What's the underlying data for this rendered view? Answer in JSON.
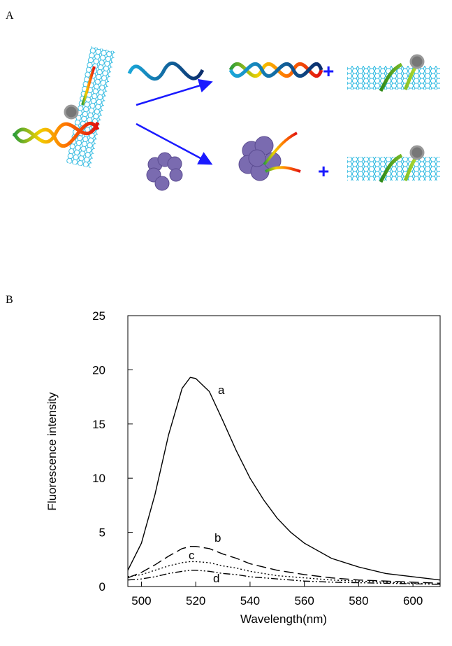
{
  "panel_labels": [
    "A",
    "B"
  ],
  "scheme": {
    "plus_signs": [
      "+",
      "+"
    ]
  },
  "chart_data": {
    "type": "line",
    "xlabel": "Wavelength(nm)",
    "ylabel": "Fluorescence intensity",
    "x": [
      495,
      500,
      505,
      510,
      515,
      518,
      520,
      525,
      530,
      535,
      540,
      545,
      550,
      555,
      560,
      570,
      580,
      590,
      600,
      610
    ],
    "series": [
      {
        "name": "a",
        "color": "#000000",
        "style": "solid",
        "values": [
          1.5,
          4,
          8.5,
          14,
          18.3,
          19.3,
          19.2,
          18,
          15.3,
          12.5,
          10,
          8,
          6.3,
          5,
          4,
          2.6,
          1.8,
          1.2,
          0.9,
          0.6
        ]
      },
      {
        "name": "b",
        "color": "#000000",
        "style": "dashed",
        "values": [
          0.8,
          1.3,
          2.0,
          2.8,
          3.5,
          3.7,
          3.7,
          3.5,
          3.0,
          2.6,
          2.1,
          1.8,
          1.5,
          1.3,
          1.1,
          0.8,
          0.6,
          0.5,
          0.4,
          0.3
        ]
      },
      {
        "name": "c",
        "color": "#000000",
        "style": "dotted",
        "values": [
          0.9,
          1.1,
          1.5,
          1.9,
          2.2,
          2.3,
          2.3,
          2.2,
          1.9,
          1.7,
          1.4,
          1.2,
          1.0,
          0.9,
          0.8,
          0.6,
          0.5,
          0.4,
          0.3,
          0.2
        ]
      },
      {
        "name": "d",
        "color": "#000000",
        "style": "dashdotdot",
        "values": [
          0.6,
          0.7,
          0.9,
          1.2,
          1.4,
          1.5,
          1.5,
          1.4,
          1.2,
          1.1,
          0.9,
          0.8,
          0.7,
          0.6,
          0.5,
          0.4,
          0.35,
          0.3,
          0.25,
          0.2
        ]
      }
    ],
    "xlim": [
      495,
      610
    ],
    "xticks": [
      500,
      520,
      540,
      560,
      580,
      600
    ],
    "ylim": [
      0,
      25
    ],
    "yticks": [
      0,
      5,
      10,
      15,
      20,
      25
    ]
  }
}
